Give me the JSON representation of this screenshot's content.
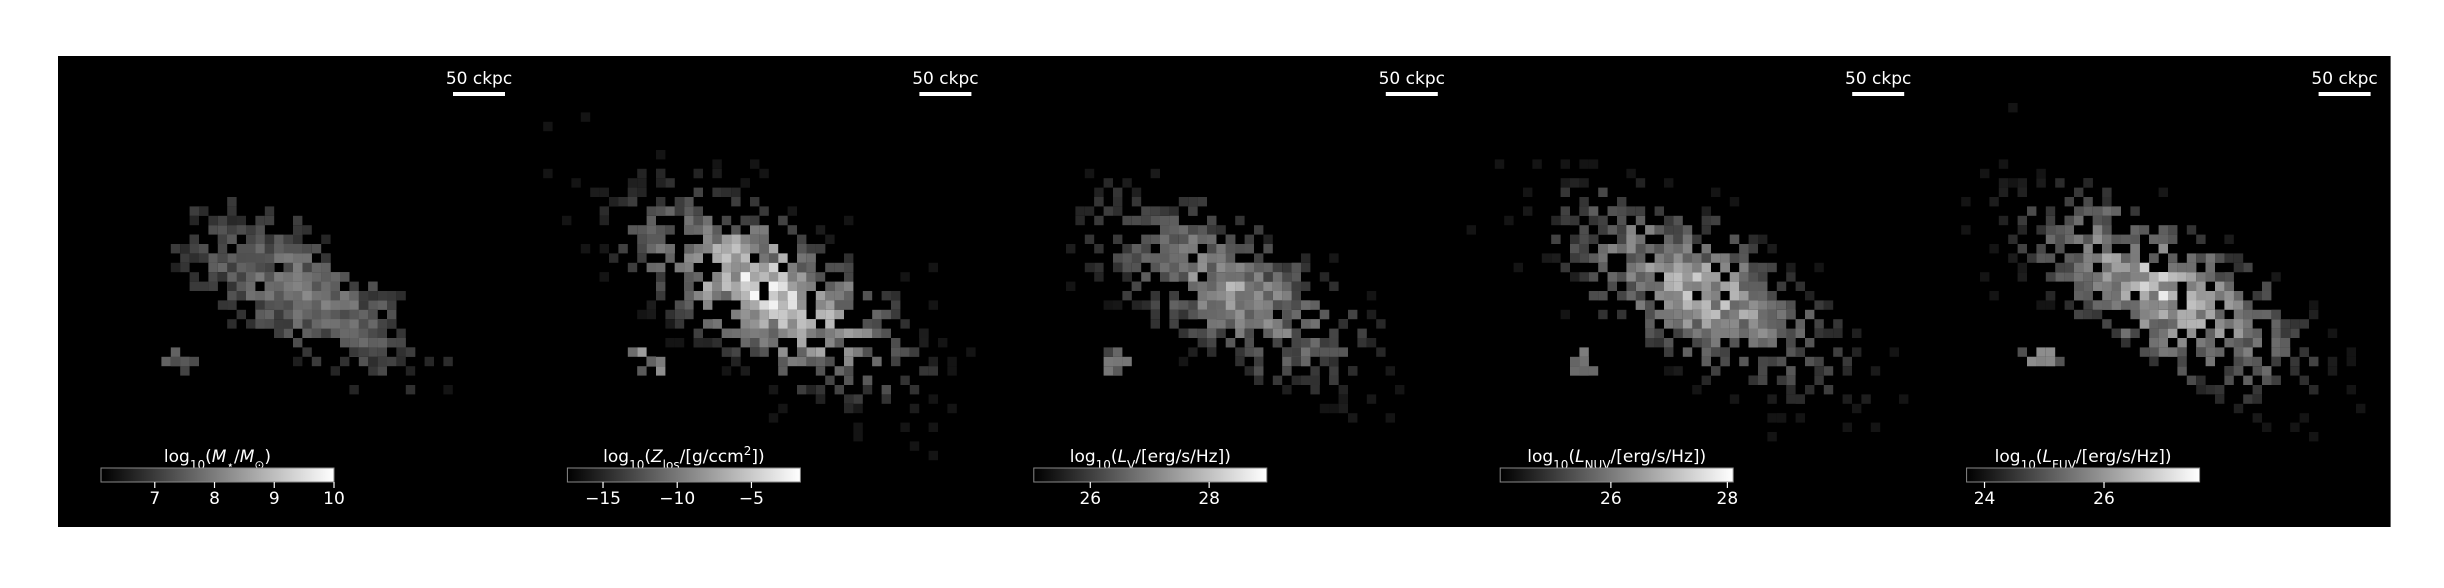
{
  "chart_data": [
    {
      "type": "image",
      "scale_bar": "50 ckpc",
      "colorbar": {
        "label_parts": [
          {
            "text": "log"
          },
          {
            "text": "10",
            "sub": true
          },
          {
            "text": "("
          },
          {
            "text": "M",
            "italic": true
          },
          {
            "text": "⋆",
            "sub": true
          },
          {
            "text": "/"
          },
          {
            "text": "M",
            "italic": true
          },
          {
            "text": "⊙",
            "sub": true
          },
          {
            "text": ")"
          }
        ],
        "xlim": [
          6.1,
          10
        ],
        "xticks": [
          7,
          8,
          9,
          10
        ]
      }
    },
    {
      "type": "image",
      "scale_bar": "50 ckpc",
      "colorbar": {
        "label_parts": [
          {
            "text": "log"
          },
          {
            "text": "10",
            "sub": true
          },
          {
            "text": "("
          },
          {
            "text": "Z",
            "italic": true
          },
          {
            "text": "los",
            "sub": true
          },
          {
            "text": "/[g/ccm"
          },
          {
            "text": "2",
            "sup": true
          },
          {
            "text": "])"
          }
        ],
        "xlim": [
          -17.4,
          -1.7
        ],
        "xticks": [
          {
            "value": -15,
            "label": "−15"
          },
          {
            "value": -10,
            "label": "−10"
          },
          {
            "value": -5,
            "label": "−5"
          }
        ]
      }
    },
    {
      "type": "image",
      "scale_bar": "50 ckpc",
      "colorbar": {
        "label_parts": [
          {
            "text": "log"
          },
          {
            "text": "10",
            "sub": true
          },
          {
            "text": "("
          },
          {
            "text": "L",
            "italic": true
          },
          {
            "text": "V",
            "sub": true
          },
          {
            "text": "/[erg/s/Hz])"
          }
        ],
        "xlim": [
          25.05,
          28.97
        ],
        "xticks": [
          26,
          28
        ]
      }
    },
    {
      "type": "image",
      "scale_bar": "50 ckpc",
      "colorbar": {
        "label_parts": [
          {
            "text": "log"
          },
          {
            "text": "10",
            "sub": true
          },
          {
            "text": "("
          },
          {
            "text": "L",
            "italic": true
          },
          {
            "text": "NUV",
            "sub": true
          },
          {
            "text": "/[erg/s/Hz])"
          }
        ],
        "xlim": [
          24.1,
          28.1
        ],
        "xticks": [
          26,
          28
        ]
      }
    },
    {
      "type": "image",
      "scale_bar": "50 ckpc",
      "colorbar": {
        "label_parts": [
          {
            "text": "log"
          },
          {
            "text": "10",
            "sub": true
          },
          {
            "text": "("
          },
          {
            "text": "L",
            "italic": true
          },
          {
            "text": "FUV",
            "sub": true
          },
          {
            "text": "/[erg/s/Hz])"
          }
        ],
        "xlim": [
          23.7,
          27.6
        ],
        "xticks": [
          24,
          26
        ]
      }
    }
  ]
}
